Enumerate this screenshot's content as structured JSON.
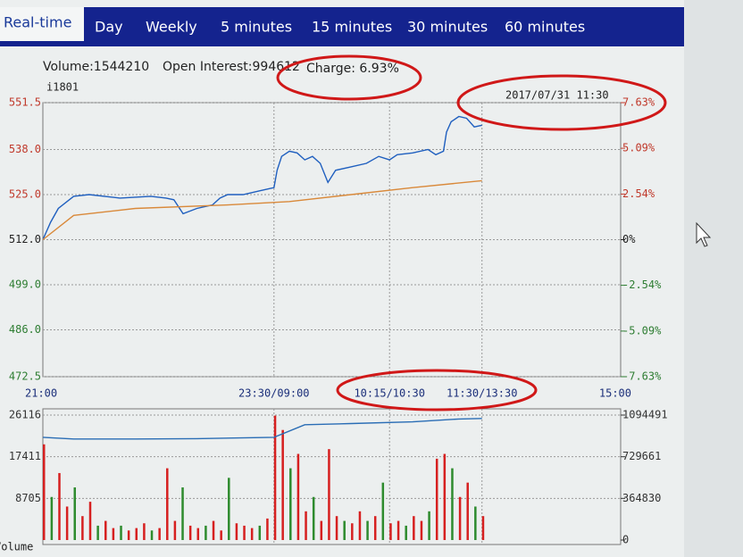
{
  "tabs": [
    "Real-time",
    "Day",
    "Weekly",
    "5 minutes",
    "15 minutes",
    "30 minutes",
    "60 minutes"
  ],
  "info": {
    "volume": "Volume:1544210",
    "open_interest": "Open Interest:994612",
    "charge": "Charge: 6.93%"
  },
  "chart_data": [
    {
      "type": "line",
      "symbol": "i1801",
      "timestamp": "2017/07/31 11:30",
      "xlim": [
        0,
        375
      ],
      "xticks": [
        {
          "value": 0,
          "label": "21:00"
        },
        {
          "value": 150,
          "label": "23:30/09:00"
        },
        {
          "value": 225,
          "label": "10:15/10:30"
        },
        {
          "value": 285,
          "label": "11:30/13:30"
        },
        {
          "value": 375,
          "label": "15:00"
        }
      ],
      "ylim": [
        472.5,
        551.5
      ],
      "yticks": [
        472.5,
        {
          "value": 486,
          "label": "486.0"
        },
        {
          "value": 499,
          "label": "499.0"
        },
        {
          "value": 512,
          "label": "512.0"
        },
        {
          "value": 525,
          "label": "525.0"
        },
        {
          "value": 538,
          "label": "538.0"
        },
        551.5
      ],
      "y2lim": [
        -7.63,
        7.63
      ],
      "y2ticks": [
        {
          "value": -7.63,
          "label": "-7.63%"
        },
        {
          "value": -5.09,
          "label": "-5.09%"
        },
        {
          "value": -2.54,
          "label": "-2.54%"
        },
        {
          "value": 0,
          "label": "0%"
        },
        {
          "value": 2.54,
          "label": "2.54%"
        },
        {
          "value": 5.09,
          "label": "5.09%"
        },
        {
          "value": 7.63,
          "label": "7.63%"
        }
      ],
      "up_color": "#c0392b",
      "down_color": "#2e7d32",
      "grid": true,
      "series": [
        {
          "color": "#1f5fbf",
          "x": [
            0,
            5,
            10,
            20,
            30,
            50,
            70,
            80,
            85,
            91,
            100,
            110,
            115,
            120,
            130,
            140,
            150,
            152,
            155,
            160,
            165,
            170,
            175,
            180,
            185,
            190,
            200,
            210,
            218,
            225,
            230,
            240,
            250,
            255,
            260,
            262,
            265,
            270,
            275,
            280,
            285
          ],
          "values": [
            512,
            517,
            521,
            524.5,
            525,
            524,
            524.5,
            524,
            523.5,
            519.5,
            521,
            522,
            524,
            525,
            525,
            526,
            527,
            532,
            536,
            537.5,
            537,
            535,
            536,
            534,
            528.5,
            532,
            533,
            534,
            536,
            535,
            536.5,
            537,
            538,
            536.5,
            537.5,
            543,
            546,
            547.5,
            547,
            544.5,
            545
          ]
        },
        {
          "color": "#d9893a",
          "x": [
            0,
            20,
            60,
            120,
            160,
            200,
            240,
            285
          ],
          "values": [
            512,
            519,
            521,
            522,
            523,
            525,
            527,
            529
          ]
        }
      ]
    },
    {
      "type": "bar",
      "label": "Volume",
      "xlim": [
        0,
        375
      ],
      "ylim": [
        0,
        26116
      ],
      "yticks": [
        8705,
        17411,
        26116
      ],
      "y2lim": [
        0,
        1094491
      ],
      "y2ticks": [
        0,
        364830,
        729661,
        1094491
      ],
      "grid": true,
      "x": [
        0,
        5,
        10,
        15,
        20,
        25,
        30,
        35,
        40,
        45,
        50,
        55,
        60,
        65,
        70,
        75,
        80,
        85,
        90,
        95,
        100,
        105,
        110,
        115,
        120,
        125,
        130,
        135,
        140,
        145,
        150,
        155,
        160,
        165,
        170,
        175,
        180,
        185,
        190,
        195,
        200,
        205,
        210,
        215,
        220,
        225,
        230,
        235,
        240,
        245,
        250,
        255,
        260,
        265,
        270,
        275,
        280,
        285
      ],
      "values": [
        20000,
        9000,
        14000,
        7000,
        11000,
        5000,
        8000,
        3000,
        4000,
        2500,
        3000,
        2000,
        2500,
        3500,
        2000,
        2500,
        15000,
        4000,
        11000,
        3000,
        2500,
        3000,
        4000,
        2000,
        13000,
        3500,
        3000,
        2500,
        3000,
        4500,
        26000,
        23000,
        15000,
        18000,
        6000,
        9000,
        4000,
        19000,
        5000,
        4000,
        3500,
        6000,
        4000,
        5000,
        12000,
        3500,
        4000,
        3000,
        5000,
        4000,
        6000,
        17000,
        18000,
        15000,
        9000,
        12000,
        7000,
        5000
      ],
      "colors": [
        "#d62020",
        "#2e8b2e",
        "#d62020",
        "#d62020",
        "#2e8b2e",
        "#d62020",
        "#d62020",
        "#2e8b2e",
        "#d62020",
        "#d62020",
        "#2e8b2e",
        "#d62020",
        "#d62020",
        "#d62020",
        "#2e8b2e",
        "#d62020",
        "#d62020",
        "#d62020",
        "#2e8b2e",
        "#d62020",
        "#d62020",
        "#2e8b2e",
        "#d62020",
        "#d62020",
        "#2e8b2e",
        "#d62020",
        "#d62020",
        "#d62020",
        "#2e8b2e",
        "#d62020",
        "#d62020",
        "#d62020",
        "#2e8b2e",
        "#d62020",
        "#d62020",
        "#2e8b2e",
        "#d62020",
        "#d62020",
        "#d62020",
        "#2e8b2e",
        "#d62020",
        "#d62020",
        "#2e8b2e",
        "#d62020",
        "#2e8b2e",
        "#d62020",
        "#d62020",
        "#2e8b2e",
        "#d62020",
        "#d62020",
        "#2e8b2e",
        "#d62020",
        "#d62020",
        "#2e8b2e",
        "#d62020",
        "#d62020",
        "#2e8b2e",
        "#d62020"
      ],
      "series": [
        {
          "color": "#2a6db5",
          "axis": "y2",
          "x": [
            0,
            20,
            60,
            100,
            150,
            170,
            200,
            240,
            270,
            285
          ],
          "values": [
            900000,
            885000,
            885000,
            888000,
            900000,
            1010000,
            1020000,
            1035000,
            1060000,
            1065000
          ]
        }
      ]
    }
  ]
}
